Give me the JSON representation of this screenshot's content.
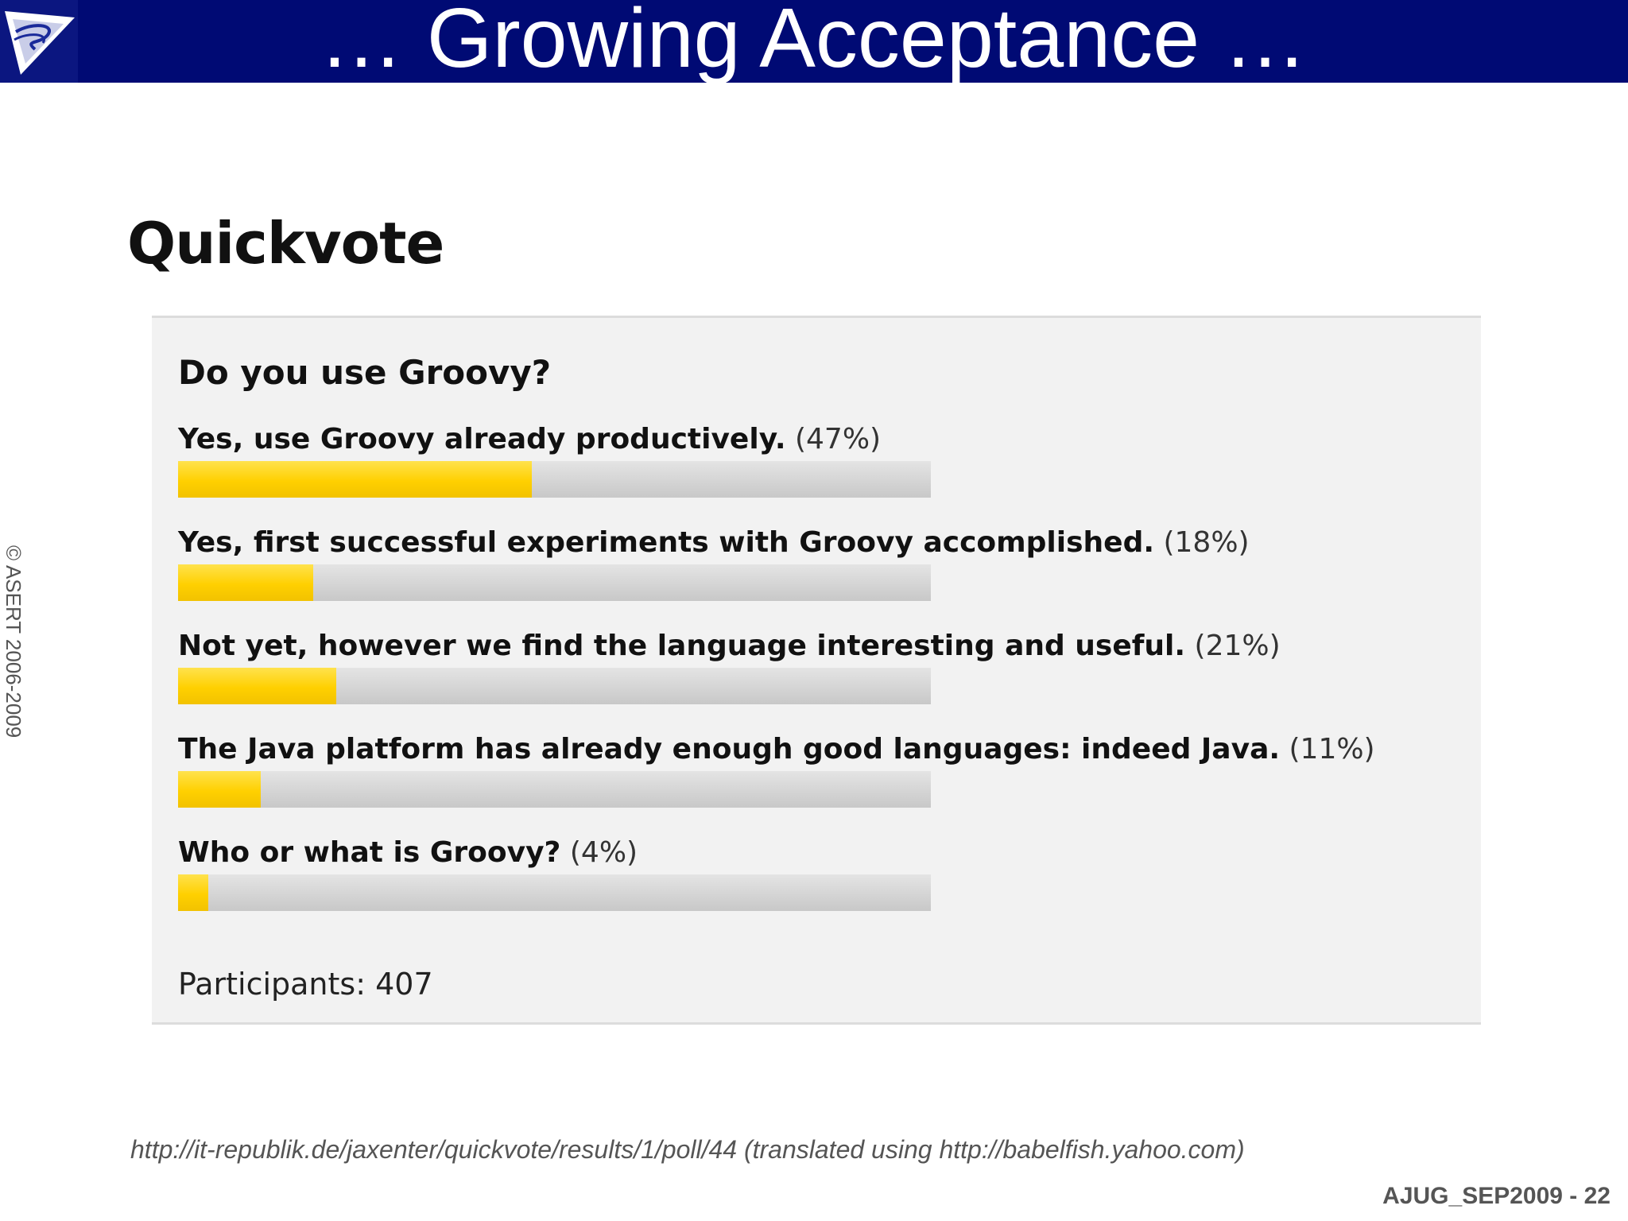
{
  "slide": {
    "title": "… Growing Acceptance …",
    "copyright": "© ASERT 2006-2009",
    "source": "http://it-republik.de/jaxenter/quickvote/results/1/poll/44 (translated using http://babelfish.yahoo.com)",
    "footer": "AJUG_SEP2009 - 22"
  },
  "poll": {
    "heading": "Quickvote",
    "question": "Do you use Groovy?",
    "participants": "Participants: 407"
  },
  "chart_data": {
    "type": "bar",
    "orientation": "horizontal",
    "title": "Do you use Groovy?",
    "categories": [
      "Yes, use Groovy already productively.",
      "Yes, first successful experiments with Groovy accomplished.",
      "Not yet, however we find the language interesting and useful.",
      "The Java platform has already enough good languages: indeed Java.",
      "Who or what is Groovy?"
    ],
    "value_labels": [
      "(47%)",
      "(18%)",
      "(21%)",
      "(11%)",
      "(4%)"
    ],
    "values": [
      47,
      18,
      21,
      11,
      4
    ],
    "xlim": [
      0,
      100
    ],
    "unit": "%",
    "colors": {
      "fill": "#ffd400",
      "track": "#d6d6d6"
    }
  }
}
